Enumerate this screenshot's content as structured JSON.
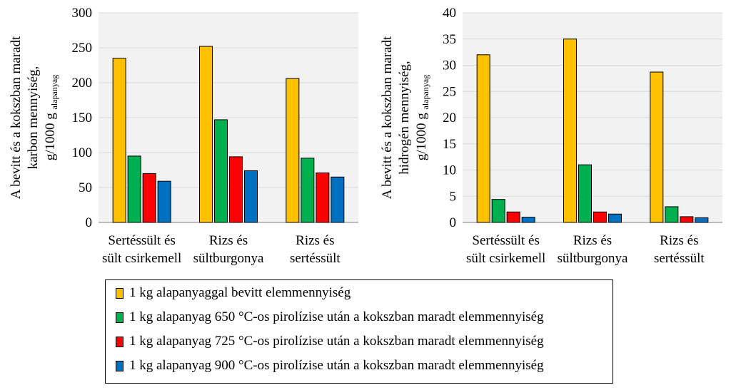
{
  "chart_data": [
    {
      "type": "bar",
      "ylabel_lines": [
        "A bevitt és a kokszban maradt",
        "karbon mennyiség,"
      ],
      "ylabel_unit": "g/1000 g",
      "ylabel_sub": "alapanyag",
      "ylim": [
        0,
        300
      ],
      "yticks": [
        0,
        50,
        100,
        150,
        200,
        250,
        300
      ],
      "categories": [
        [
          "Sertéssült és",
          "sült csirkemell"
        ],
        [
          "Rizs és",
          "sültburgonya"
        ],
        [
          "Rizs és",
          "sertéssült"
        ]
      ],
      "series": [
        {
          "name": "1 kg alapanyaggal bevitt elemmennyiség",
          "color": "#FFC000",
          "values": [
            235,
            252,
            206
          ]
        },
        {
          "name": "1 kg alapanyag 650 °C-os pirolízise után a kokszban maradt elemmennyiség",
          "color": "#00B050",
          "values": [
            95,
            147,
            92
          ]
        },
        {
          "name": "1 kg alapanyag 725 °C-os pirolízise után a kokszban maradt elemmennyiség",
          "color": "#FF0000",
          "values": [
            70,
            94,
            71
          ]
        },
        {
          "name": "1 kg alapanyag 900 °C-os pirolízise után a kokszban maradt elemmennyiség",
          "color": "#0070C0",
          "values": [
            59,
            74,
            65
          ]
        }
      ],
      "grid": true
    },
    {
      "type": "bar",
      "ylabel_lines": [
        "A bevitt és a kokszban maradt",
        "hidrogén mennyiség,"
      ],
      "ylabel_unit": "g/1000 g",
      "ylabel_sub": "alapanyag",
      "ylim": [
        0,
        40
      ],
      "yticks": [
        0,
        5,
        10,
        15,
        20,
        25,
        30,
        35,
        40
      ],
      "categories": [
        [
          "Sertéssült és",
          "sült csirkemell"
        ],
        [
          "Rizs és",
          "sültburgonya"
        ],
        [
          "Rizs és",
          "sertéssült"
        ]
      ],
      "series": [
        {
          "name": "1 kg alapanyaggal bevitt elemmennyiség",
          "color": "#FFC000",
          "values": [
            32,
            35,
            28.7
          ]
        },
        {
          "name": "1 kg alapanyag 650 °C-os pirolízise után a kokszban maradt elemmennyiség",
          "color": "#00B050",
          "values": [
            4.4,
            11,
            3
          ]
        },
        {
          "name": "1 kg alapanyag 725 °C-os pirolízise után a kokszban maradt elemmennyiség",
          "color": "#FF0000",
          "values": [
            2,
            2,
            1.1
          ]
        },
        {
          "name": "1 kg alapanyag 900 °C-os pirolízise után a kokszban maradt elemmennyiség",
          "color": "#0070C0",
          "values": [
            1,
            1.6,
            0.9
          ]
        }
      ],
      "grid": true
    }
  ],
  "legend": {
    "placement": "bottom-center",
    "items": [
      {
        "label": "1 kg alapanyaggal bevitt elemmennyiség",
        "color": "#FFC000"
      },
      {
        "label": "1 kg alapanyag 650 °C-os pirolízise után a kokszban maradt elemmennyiség",
        "color": "#00B050"
      },
      {
        "label": "1 kg alapanyag 725 °C-os pirolízise után a kokszban maradt elemmennyiség",
        "color": "#FF0000"
      },
      {
        "label": "1 kg alapanyag 900 °C-os pirolízise után a kokszban maradt elemmennyiség",
        "color": "#0070C0"
      }
    ]
  }
}
